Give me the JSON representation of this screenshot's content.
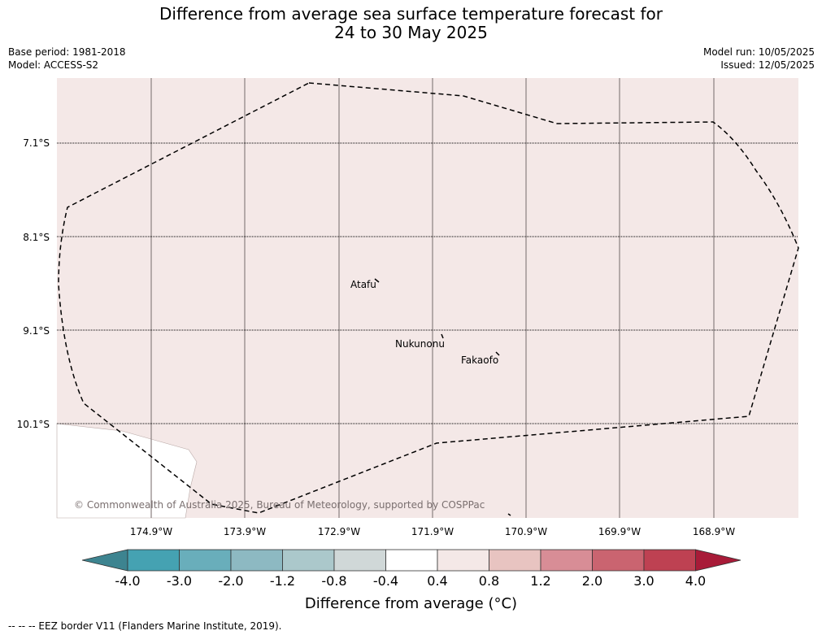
{
  "title": {
    "line1": "Difference from average sea surface temperature forecast for",
    "line2": "24 to 30 May 2025"
  },
  "meta": {
    "base_period": "Base period: 1981-2018",
    "model": "Model: ACCESS-S2",
    "model_run": "Model run: 10/05/2025",
    "issued": "Issued: 12/05/2025"
  },
  "map": {
    "lat_labels": [
      "7.1°S",
      "8.1°S",
      "9.1°S",
      "10.1°S"
    ],
    "lon_labels": [
      "174.9°W",
      "173.9°W",
      "172.9°W",
      "171.9°W",
      "170.9°W",
      "169.9°W",
      "168.9°W"
    ],
    "places": [
      "Atafu",
      "Nukunonu",
      "Fakaofo"
    ],
    "ocean_color": "#f4e8e7",
    "credit": "© Commonwealth of Australia 2025, Bureau of Meteorology, supported by COSPPac"
  },
  "colorbar": {
    "ticks": [
      "-4.0",
      "-3.0",
      "-2.0",
      "-1.2",
      "-0.8",
      "-0.4",
      "0.4",
      "0.8",
      "1.2",
      "2.0",
      "3.0",
      "4.0"
    ],
    "colors": [
      "#3d8490",
      "#45a2b2",
      "#69aebb",
      "#8db9c2",
      "#abc8cb",
      "#d0d8d8",
      "#ffffff",
      "#f4e8e7",
      "#e8c4c1",
      "#d88d96",
      "#ca6470",
      "#be4152",
      "#a81b38"
    ],
    "label": "Difference from average (°C)"
  },
  "footer": "--  --  -- EEZ border V11 (Flanders Marine Institute, 2019)."
}
